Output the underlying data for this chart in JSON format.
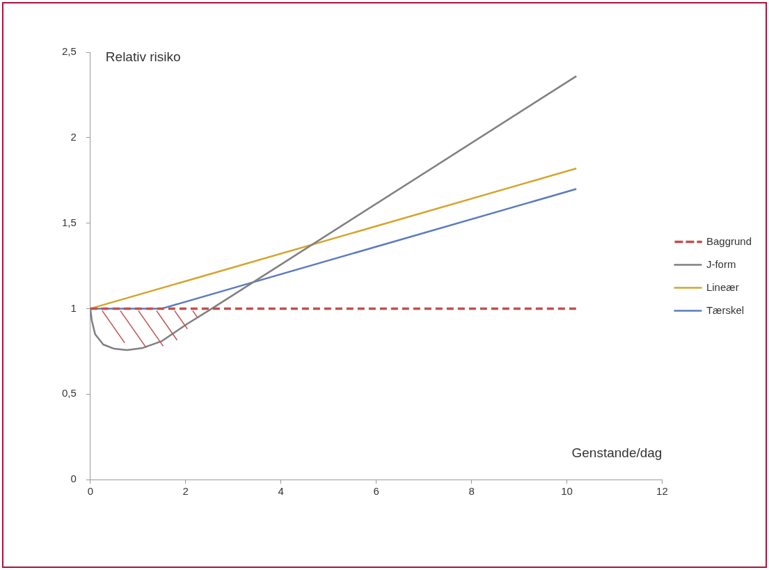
{
  "chart_data": {
    "type": "line",
    "xlabel": "Genstande/dag",
    "ylabel": "Relativ risiko",
    "xlim": [
      0,
      12
    ],
    "xticks": [
      0,
      2,
      4,
      6,
      8,
      10,
      12
    ],
    "ylim": [
      0,
      2.5
    ],
    "yticks": [
      0,
      {
        "value": 0.5,
        "label": "0,5"
      },
      1,
      {
        "value": 1.5,
        "label": "1,5"
      },
      2,
      {
        "value": 2.5,
        "label": "2,5"
      }
    ],
    "grid": false,
    "legend": "right",
    "marker": "none",
    "series": [
      {
        "name": "Baggrund",
        "color": "#c0504d",
        "line_style": "dashed",
        "x": [
          0,
          10.2
        ],
        "values": [
          1,
          1
        ]
      },
      {
        "name": "J-form",
        "color": "#7f7f7f",
        "line_style": "solid",
        "x": [
          0,
          0.03,
          0.1,
          0.27,
          0.5,
          0.77,
          1.1,
          1.5,
          2.03,
          2.55,
          10.2
        ],
        "values": [
          1,
          0.93,
          0.85,
          0.79,
          0.765,
          0.757,
          0.77,
          0.81,
          0.91,
          1,
          2.36
        ]
      },
      {
        "name": "Lineær",
        "color": "#d4a52c",
        "line_style": "solid",
        "x": [
          0,
          10.2
        ],
        "values": [
          1,
          1.82
        ]
      },
      {
        "name": "Tærskel",
        "color": "#5b7bc0",
        "line_style": "solid",
        "x": [
          0,
          1.5,
          10.2
        ],
        "values": [
          1,
          1,
          1.7
        ]
      }
    ]
  }
}
